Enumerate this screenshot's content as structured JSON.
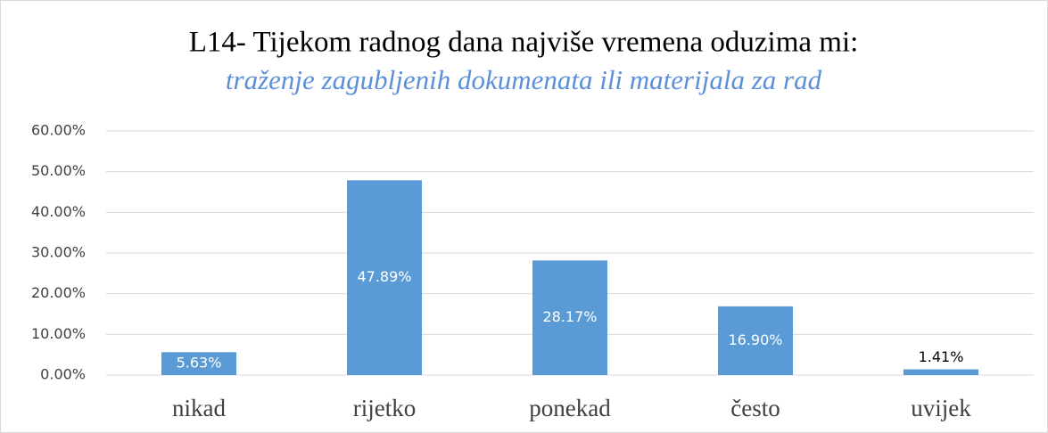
{
  "chart_data": {
    "type": "bar",
    "title": "L14- Tijekom radnog dana najviše vremena oduzima mi:",
    "subtitle": "traženje zagubljenih dokumenata ili materijala za rad",
    "categories": [
      "nikad",
      "rijetko",
      "ponekad",
      "često",
      "uvijek"
    ],
    "values": [
      5.63,
      47.89,
      28.17,
      16.9,
      1.41
    ],
    "value_labels": [
      "5.63%",
      "47.89%",
      "28.17%",
      "16.90%",
      "1.41%"
    ],
    "color": "#5b9bd5",
    "ylim": [
      0,
      60
    ],
    "yticks": [
      {
        "value": 0,
        "label": "0.00%"
      },
      {
        "value": 10,
        "label": "10.00%"
      },
      {
        "value": 20,
        "label": "20.00%"
      },
      {
        "value": 30,
        "label": "30.00%"
      },
      {
        "value": 40,
        "label": "40.00%"
      },
      {
        "value": 50,
        "label": "50.00%"
      },
      {
        "value": 60,
        "label": "60.00%"
      }
    ],
    "grid": true
  }
}
